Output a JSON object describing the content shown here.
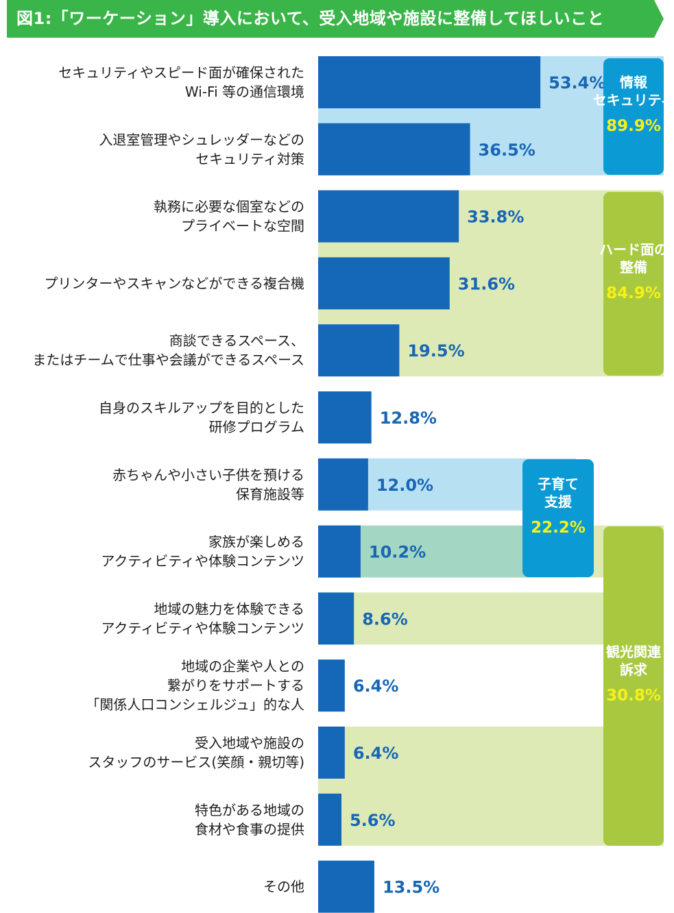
{
  "header": {
    "title": "図1:「ワーケーション」導入において、受入地域や施設に整備してほしいこと"
  },
  "colors": {
    "header_green": "#3ab549",
    "bar_blue": "#1468b7",
    "value_text": "#1866b4",
    "band_lightblue": "#b7e0f3",
    "band_lightgreen": "#ddeab6",
    "band_overlap": "#a4d7c3",
    "badge_blue": "#0b9ad3",
    "badge_green": "#a8c93f",
    "badge_value_yellow": "#f7f01a"
  },
  "chart_data": {
    "type": "bar",
    "orientation": "horizontal",
    "unit": "%",
    "xlim": [
      0,
      100
    ],
    "categories": [
      [
        "セキュリティやスピード面が確保された",
        "Wi-Fi 等の通信環境"
      ],
      [
        "入退室管理やシュレッダーなどの",
        "セキュリティ対策"
      ],
      [
        "執務に必要な個室などの",
        "プライベートな空間"
      ],
      [
        "プリンターやスキャンなどができる複合機"
      ],
      [
        "商談できるスペース、",
        "またはチームで仕事や会議ができるスペース"
      ],
      [
        "自身のスキルアップを目的とした",
        "研修プログラム"
      ],
      [
        "赤ちゃんや小さい子供を預ける",
        "保育施設等"
      ],
      [
        "家族が楽しめる",
        "アクティビティや体験コンテンツ"
      ],
      [
        "地域の魅力を体験できる",
        "アクティビティや体験コンテンツ"
      ],
      [
        "地域の企業や人との",
        "繋がりをサポートする",
        "「関係人口コンシェルジュ」的な人"
      ],
      [
        "受入地域や施設の",
        "スタッフのサービス(笑顔・親切等)"
      ],
      [
        "特色がある地域の",
        "食材や食事の提供"
      ],
      [
        "その他"
      ]
    ],
    "values": [
      53.4,
      36.5,
      33.8,
      31.6,
      19.5,
      12.8,
      12.0,
      10.2,
      8.6,
      6.4,
      6.4,
      5.6,
      13.5
    ],
    "value_labels": [
      "53.4%",
      "36.5%",
      "33.8%",
      "31.6%",
      "19.5%",
      "12.8%",
      "12.0%",
      "10.2%",
      "8.6%",
      "6.4%",
      "6.4%",
      "5.6%",
      "13.5%"
    ],
    "groups": [
      {
        "name": [
          "情報",
          "セキュリティ"
        ],
        "total": 89.9,
        "total_label": "89.9%",
        "members": [
          0,
          1
        ],
        "color": "blue"
      },
      {
        "name": [
          "ハード面の",
          "整備"
        ],
        "total": 84.9,
        "total_label": "84.9%",
        "members": [
          2,
          3,
          4
        ],
        "color": "green"
      },
      {
        "name": [
          "子育て",
          "支援"
        ],
        "total": 22.2,
        "total_label": "22.2%",
        "members": [
          6,
          7
        ],
        "color": "blue"
      },
      {
        "name": [
          "観光関連",
          "訴求"
        ],
        "total": 30.8,
        "total_label": "30.8%",
        "members": [
          7,
          8,
          10,
          11
        ],
        "color": "green"
      }
    ]
  }
}
